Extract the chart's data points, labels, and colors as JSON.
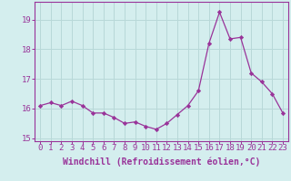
{
  "x": [
    0,
    1,
    2,
    3,
    4,
    5,
    6,
    7,
    8,
    9,
    10,
    11,
    12,
    13,
    14,
    15,
    16,
    17,
    18,
    19,
    20,
    21,
    22,
    23
  ],
  "y": [
    16.1,
    16.2,
    16.1,
    16.25,
    16.1,
    15.85,
    15.85,
    15.7,
    15.5,
    15.55,
    15.4,
    15.3,
    15.5,
    15.8,
    16.1,
    16.6,
    18.2,
    19.25,
    18.35,
    18.4,
    17.2,
    16.9,
    16.5,
    15.85
  ],
  "line_color": "#993399",
  "marker": "D",
  "marker_size": 2.2,
  "bg_color": "#d4eeee",
  "grid_color": "#b8d8d8",
  "xlabel": "Windchill (Refroidissement éolien,°C)",
  "xlabel_fontsize": 7,
  "tick_fontsize": 6.5,
  "ylim": [
    14.9,
    19.6
  ],
  "yticks": [
    15,
    16,
    17,
    18,
    19
  ],
  "xlim": [
    -0.5,
    23.5
  ],
  "xticks": [
    0,
    1,
    2,
    3,
    4,
    5,
    6,
    7,
    8,
    9,
    10,
    11,
    12,
    13,
    14,
    15,
    16,
    17,
    18,
    19,
    20,
    21,
    22,
    23
  ]
}
